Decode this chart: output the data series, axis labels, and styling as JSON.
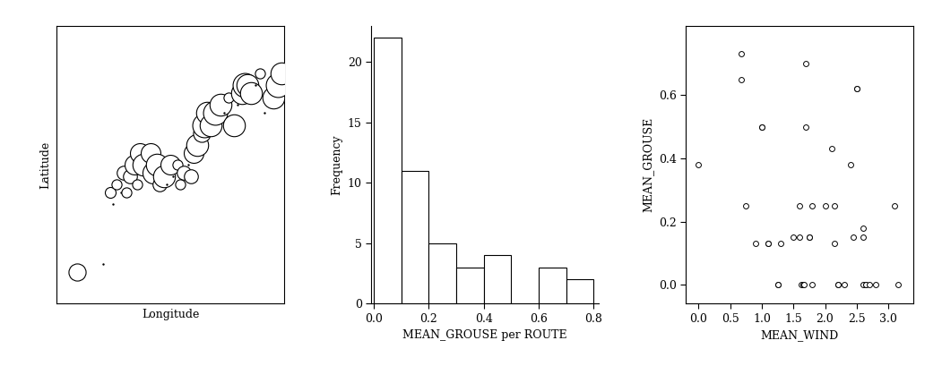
{
  "map_points": [
    {
      "lon": -91.5,
      "lat": 43.8,
      "grouse": 0.38
    },
    {
      "lon": -89.5,
      "lat": 44.0,
      "grouse": 0.0
    },
    {
      "lon": -89.0,
      "lat": 45.8,
      "grouse": 0.15
    },
    {
      "lon": -88.8,
      "lat": 45.5,
      "grouse": 0.0
    },
    {
      "lon": -88.5,
      "lat": 46.0,
      "grouse": 0.13
    },
    {
      "lon": -88.2,
      "lat": 45.8,
      "grouse": 0.0
    },
    {
      "lon": -88.0,
      "lat": 46.3,
      "grouse": 0.25
    },
    {
      "lon": -87.8,
      "lat": 45.8,
      "grouse": 0.13
    },
    {
      "lon": -87.5,
      "lat": 46.2,
      "grouse": 0.25
    },
    {
      "lon": -87.2,
      "lat": 46.5,
      "grouse": 0.5
    },
    {
      "lon": -87.0,
      "lat": 46.0,
      "grouse": 0.13
    },
    {
      "lon": -86.8,
      "lat": 46.8,
      "grouse": 0.5
    },
    {
      "lon": -86.5,
      "lat": 46.5,
      "grouse": 0.62
    },
    {
      "lon": -86.2,
      "lat": 46.2,
      "grouse": 0.0
    },
    {
      "lon": -86.0,
      "lat": 46.8,
      "grouse": 0.5
    },
    {
      "lon": -85.8,
      "lat": 46.3,
      "grouse": 0.6
    },
    {
      "lon": -85.5,
      "lat": 46.5,
      "grouse": 0.62
    },
    {
      "lon": -85.3,
      "lat": 46.0,
      "grouse": 0.25
    },
    {
      "lon": -85.0,
      "lat": 46.2,
      "grouse": 0.62
    },
    {
      "lon": -84.8,
      "lat": 46.0,
      "grouse": 0.0
    },
    {
      "lon": -84.5,
      "lat": 46.5,
      "grouse": 0.5
    },
    {
      "lon": -84.3,
      "lat": 46.2,
      "grouse": 0.0
    },
    {
      "lon": -84.0,
      "lat": 46.5,
      "grouse": 0.13
    },
    {
      "lon": -83.8,
      "lat": 46.0,
      "grouse": 0.13
    },
    {
      "lon": -83.5,
      "lat": 46.3,
      "grouse": 0.25
    },
    {
      "lon": -83.2,
      "lat": 46.5,
      "grouse": 0.0
    },
    {
      "lon": -83.0,
      "lat": 46.2,
      "grouse": 0.25
    },
    {
      "lon": -82.8,
      "lat": 46.8,
      "grouse": 0.5
    },
    {
      "lon": -82.5,
      "lat": 47.0,
      "grouse": 0.62
    },
    {
      "lon": -82.2,
      "lat": 47.3,
      "grouse": 0.38
    },
    {
      "lon": -82.0,
      "lat": 47.5,
      "grouse": 0.75
    },
    {
      "lon": -81.8,
      "lat": 47.8,
      "grouse": 0.62
    },
    {
      "lon": -81.5,
      "lat": 47.5,
      "grouse": 0.62
    },
    {
      "lon": -81.2,
      "lat": 47.8,
      "grouse": 0.75
    },
    {
      "lon": -80.8,
      "lat": 48.0,
      "grouse": 0.62
    },
    {
      "lon": -80.5,
      "lat": 47.8,
      "grouse": 0.0
    },
    {
      "lon": -80.2,
      "lat": 48.2,
      "grouse": 0.13
    },
    {
      "lon": -79.8,
      "lat": 47.5,
      "grouse": 0.62
    },
    {
      "lon": -79.5,
      "lat": 48.0,
      "grouse": 0.0
    },
    {
      "lon": -79.2,
      "lat": 48.3,
      "grouse": 0.62
    },
    {
      "lon": -79.0,
      "lat": 48.5,
      "grouse": 0.75
    },
    {
      "lon": -78.8,
      "lat": 48.5,
      "grouse": 0.62
    },
    {
      "lon": -78.5,
      "lat": 48.3,
      "grouse": 0.62
    },
    {
      "lon": -78.2,
      "lat": 48.5,
      "grouse": 0.0
    },
    {
      "lon": -77.8,
      "lat": 48.8,
      "grouse": 0.13
    },
    {
      "lon": -77.5,
      "lat": 47.8,
      "grouse": 0.0
    },
    {
      "lon": -77.2,
      "lat": 48.5,
      "grouse": 0.0
    },
    {
      "lon": -76.8,
      "lat": 48.2,
      "grouse": 0.62
    },
    {
      "lon": -76.5,
      "lat": 48.5,
      "grouse": 0.75
    },
    {
      "lon": -76.2,
      "lat": 48.8,
      "grouse": 0.62
    }
  ],
  "hist_bin_edges": [
    0.0,
    0.1,
    0.2,
    0.3,
    0.4,
    0.5,
    0.6,
    0.7,
    0.8
  ],
  "hist_counts": [
    22,
    11,
    5,
    3,
    4,
    0,
    3,
    2
  ],
  "scatter_wind": [
    0.0,
    0.67,
    0.67,
    0.75,
    0.9,
    1.0,
    1.0,
    1.1,
    1.1,
    1.25,
    1.25,
    1.3,
    1.5,
    1.6,
    1.6,
    1.63,
    1.65,
    1.67,
    1.7,
    1.7,
    1.75,
    1.75,
    1.8,
    1.8,
    2.0,
    2.1,
    2.15,
    2.15,
    2.2,
    2.2,
    2.3,
    2.4,
    2.45,
    2.5,
    2.5,
    2.6,
    2.6,
    2.6,
    2.65,
    2.65,
    2.7,
    2.8,
    3.1,
    3.15
  ],
  "scatter_grouse": [
    0.38,
    0.73,
    0.65,
    0.25,
    0.13,
    0.5,
    0.5,
    0.13,
    0.13,
    0.0,
    0.0,
    0.13,
    0.15,
    0.25,
    0.15,
    0.0,
    0.0,
    0.0,
    0.5,
    0.7,
    0.15,
    0.15,
    0.0,
    0.25,
    0.25,
    0.43,
    0.13,
    0.25,
    0.0,
    0.0,
    0.0,
    0.38,
    0.15,
    0.62,
    0.62,
    0.18,
    0.15,
    0.0,
    0.0,
    0.0,
    0.0,
    0.0,
    0.25,
    0.0
  ],
  "map_xlabel": "Longitude",
  "map_ylabel": "Latitude",
  "hist_xlabel": "MEAN_GROUSE per ROUTE",
  "hist_ylabel": "Frequency",
  "scatter_xlabel": "MEAN_WIND",
  "scatter_ylabel": "MEAN_GROUSE",
  "background_color": "#ffffff"
}
